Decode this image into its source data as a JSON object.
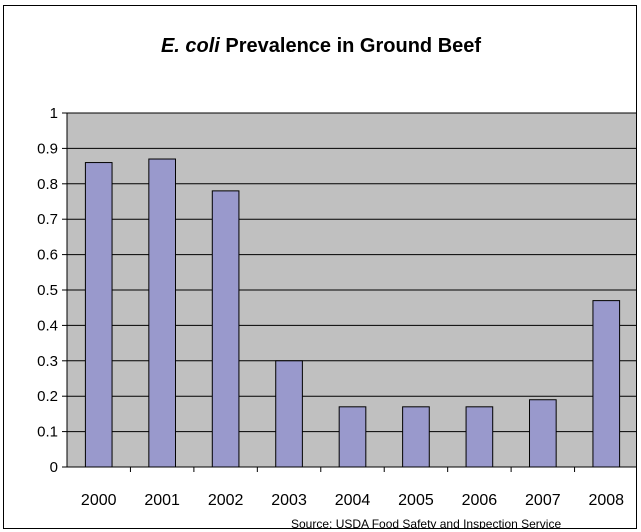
{
  "chart_data": {
    "type": "bar",
    "title_italic": "E. coli",
    "title_rest": "Prevalence in Ground Beef",
    "xlabel": "",
    "ylabel": "",
    "categories": [
      "2000",
      "2001",
      "2002",
      "2003",
      "2004",
      "2005",
      "2006",
      "2007",
      "2008"
    ],
    "values": [
      0.86,
      0.87,
      0.78,
      0.3,
      0.17,
      0.17,
      0.17,
      0.19,
      0.47
    ],
    "ylim": [
      0,
      1
    ],
    "yticks": [
      "0",
      "0.1",
      "0.2",
      "0.3",
      "0.4",
      "0.5",
      "0.6",
      "0.7",
      "0.8",
      "0.9",
      "1"
    ],
    "grid": true,
    "legend": "none",
    "colors": {
      "plot_background": "#c0c0c0",
      "bar_fill": "#9999cc",
      "bar_stroke": "#000000",
      "gridline": "#000000"
    }
  },
  "source_note": "Source: USDA Food Safety and Inspection Service"
}
